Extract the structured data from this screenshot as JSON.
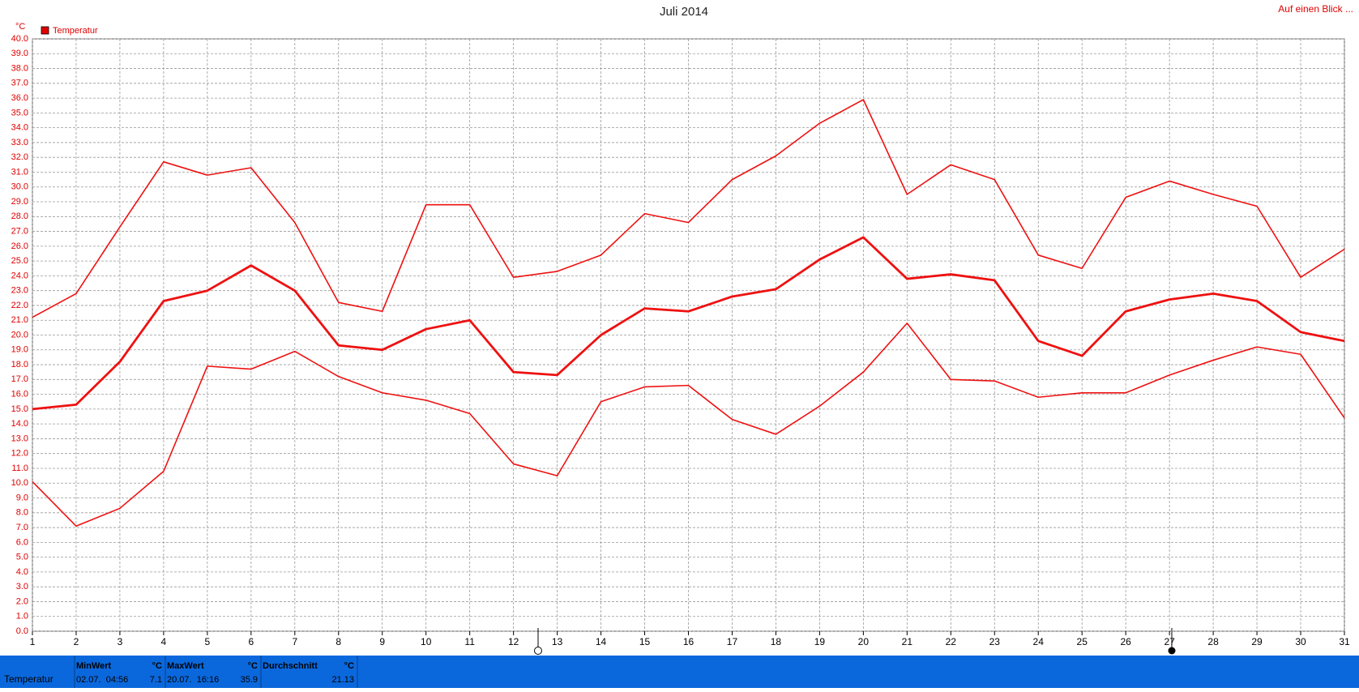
{
  "chart_data": {
    "type": "line",
    "title": "Juli 2014",
    "y_label": "°C",
    "legend": "Temperatur",
    "legend_color": "#e00000",
    "corner_link": "Auf einen Blick ...",
    "x": [
      1,
      2,
      3,
      4,
      5,
      6,
      7,
      8,
      9,
      10,
      11,
      12,
      13,
      14,
      15,
      16,
      17,
      18,
      19,
      20,
      21,
      22,
      23,
      24,
      25,
      26,
      27,
      28,
      29,
      30,
      31
    ],
    "xlim": [
      1,
      31
    ],
    "ylim": [
      0,
      40
    ],
    "yticks": [
      {
        "value": 0,
        "label": "0.0"
      },
      {
        "value": 1,
        "label": "1.0"
      },
      {
        "value": 2,
        "label": "2.0"
      },
      {
        "value": 3,
        "label": "3.0"
      },
      {
        "value": 4,
        "label": "4.0"
      },
      {
        "value": 5,
        "label": "5.0"
      },
      {
        "value": 6,
        "label": "6.0"
      },
      {
        "value": 7,
        "label": "7.0"
      },
      {
        "value": 8,
        "label": "8.0"
      },
      {
        "value": 9,
        "label": "9.0"
      },
      {
        "value": 10,
        "label": "10.0"
      },
      {
        "value": 11,
        "label": "11.0"
      },
      {
        "value": 12,
        "label": "12.0"
      },
      {
        "value": 13,
        "label": "13.0"
      },
      {
        "value": 14,
        "label": "14.0"
      },
      {
        "value": 15,
        "label": "15.0"
      },
      {
        "value": 16,
        "label": "16.0"
      },
      {
        "value": 17,
        "label": "17.0"
      },
      {
        "value": 18,
        "label": "18.0"
      },
      {
        "value": 19,
        "label": "19.0"
      },
      {
        "value": 20,
        "label": "20.0"
      },
      {
        "value": 21,
        "label": "21.0"
      },
      {
        "value": 22,
        "label": "22.0"
      },
      {
        "value": 23,
        "label": "23.0"
      },
      {
        "value": 24,
        "label": "24.0"
      },
      {
        "value": 25,
        "label": "25.0"
      },
      {
        "value": 26,
        "label": "26.0"
      },
      {
        "value": 27,
        "label": "27.0"
      },
      {
        "value": 28,
        "label": "28.0"
      },
      {
        "value": 29,
        "label": "29.0"
      },
      {
        "value": 30,
        "label": "30.0"
      },
      {
        "value": 31,
        "label": "31.0"
      },
      {
        "value": 32,
        "label": "32.0"
      },
      {
        "value": 33,
        "label": "33.0"
      },
      {
        "value": 34,
        "label": "34.0"
      },
      {
        "value": 35,
        "label": "35.0"
      },
      {
        "value": 36,
        "label": "36.0"
      },
      {
        "value": 37,
        "label": "37.0"
      },
      {
        "value": 38,
        "label": "38.0"
      },
      {
        "value": 39,
        "label": "39.0"
      },
      {
        "value": 40,
        "label": "40.0"
      }
    ],
    "grid": true,
    "series": [
      {
        "color": "#ee1111",
        "width": 1.6,
        "values": [
          21.2,
          22.8,
          27.3,
          31.7,
          30.8,
          31.3,
          27.6,
          22.2,
          21.6,
          28.8,
          28.8,
          23.9,
          24.3,
          25.4,
          28.2,
          27.6,
          30.5,
          32.1,
          34.3,
          35.9,
          29.5,
          31.5,
          30.5,
          25.4,
          24.5,
          29.3,
          30.4,
          29.5,
          28.7,
          23.9,
          25.8
        ]
      },
      {
        "color": "#ee1111",
        "width": 2.8,
        "values": [
          15.0,
          15.3,
          18.2,
          22.3,
          23.0,
          24.7,
          23.0,
          19.3,
          19.0,
          20.4,
          21.0,
          17.5,
          17.3,
          20.0,
          21.8,
          21.6,
          22.6,
          23.1,
          25.1,
          26.6,
          23.8,
          24.1,
          23.7,
          19.6,
          18.6,
          21.6,
          22.4,
          22.8,
          22.3,
          20.2,
          19.6
        ]
      },
      {
        "color": "#ee1111",
        "width": 1.6,
        "values": [
          10.1,
          7.1,
          8.3,
          10.8,
          17.9,
          17.7,
          18.9,
          17.2,
          16.1,
          15.6,
          14.7,
          11.3,
          10.5,
          15.5,
          16.5,
          16.6,
          14.3,
          13.3,
          15.2,
          17.5,
          20.8,
          17.0,
          16.9,
          15.8,
          16.1,
          16.1,
          17.3,
          18.3,
          19.2,
          18.7,
          14.4
        ]
      }
    ]
  },
  "footer": {
    "row_label": "Temperatur",
    "cells": [
      {
        "title": "MinWert",
        "unit": "°C",
        "detail": "02.07.  04:56",
        "value": "7.1"
      },
      {
        "title": "MaxWert",
        "unit": "°C",
        "detail": "20.07.  16:16",
        "value": "35.9"
      },
      {
        "title": "Durchschnitt",
        "unit": "°C",
        "detail": "",
        "value": "21.13"
      }
    ]
  }
}
